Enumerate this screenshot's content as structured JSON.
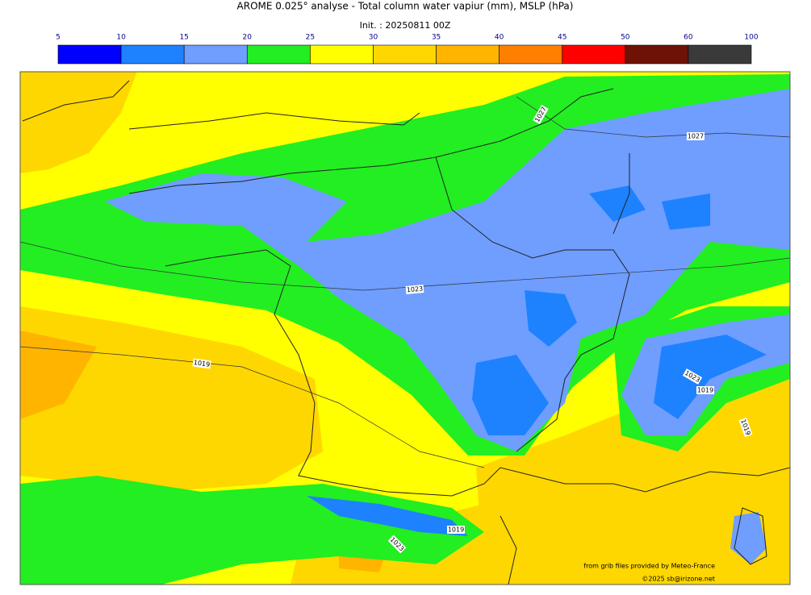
{
  "header": {
    "title": "AROME 0.025° analyse - Total column water vapiur (mm), MSLP (hPa)",
    "init": "Init. : 20250811 00Z"
  },
  "colorbar": {
    "ticks": [
      5,
      10,
      15,
      20,
      25,
      30,
      35,
      40,
      45,
      50,
      60,
      100
    ],
    "colors": [
      "#0000ff",
      "#1e82ff",
      "#6f9eff",
      "#22ee22",
      "#ffff00",
      "#ffd700",
      "#ffb400",
      "#ff8000",
      "#ff0000",
      "#6e1206",
      "#3a3a3a"
    ]
  },
  "contour_labels": [
    "1027",
    "1027",
    "1023",
    "1019",
    "1023",
    "1019",
    "1019",
    "1019",
    "1023"
  ],
  "credits": {
    "source": "from grib files provided by Meteo-France",
    "copyright": "©2025 sb@irizone.net"
  }
}
